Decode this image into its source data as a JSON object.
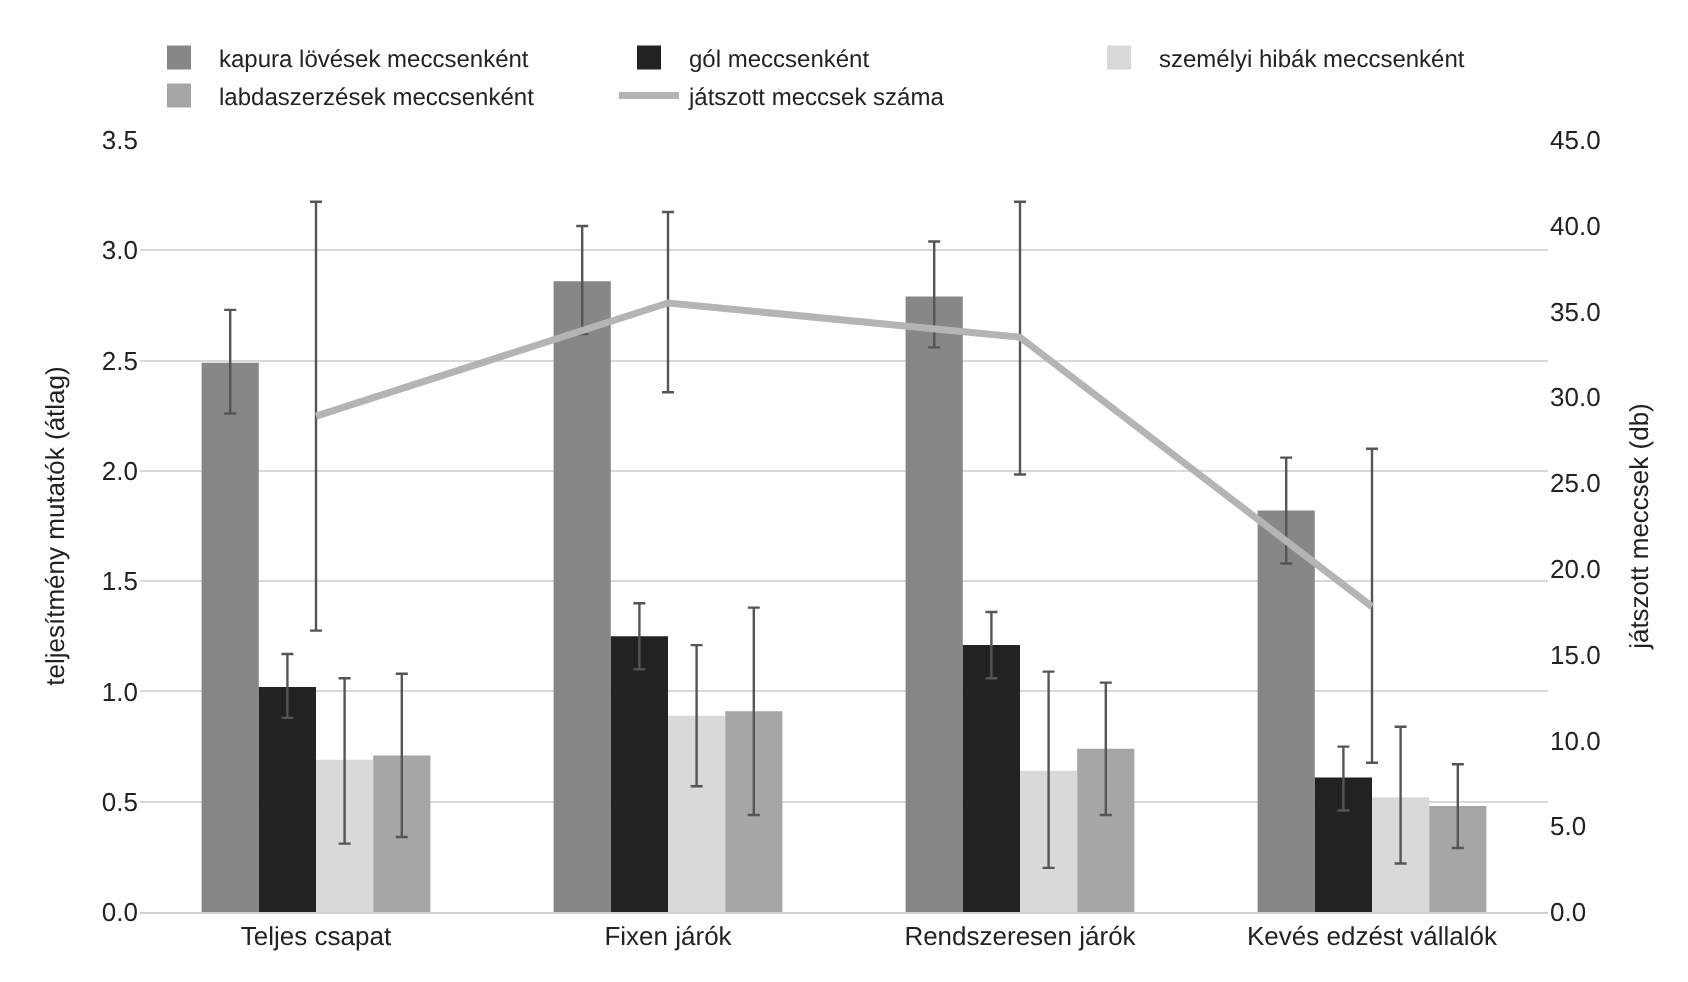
{
  "chart_data": {
    "type": "bar",
    "ylabel": "teljesítmény mutatók (átlag)",
    "y2label": "játszott meccsek (db)",
    "categories": [
      "Teljes csapat",
      "Fixen járók",
      "Rendszeresen járók",
      "Kevés edzést vállalók"
    ],
    "series": [
      {
        "name": "kapura lövések meccsenként",
        "color": "#878787",
        "values": [
          2.49,
          2.86,
          2.79,
          1.82
        ],
        "errors": [
          [
            2.26,
            2.73
          ],
          [
            2.62,
            3.11
          ],
          [
            2.56,
            3.04
          ],
          [
            1.58,
            2.06
          ]
        ]
      },
      {
        "name": "gól meccsenként",
        "color": "#222222",
        "values": [
          1.02,
          1.25,
          1.21,
          0.61
        ],
        "errors": [
          [
            0.88,
            1.17
          ],
          [
            1.1,
            1.4
          ],
          [
            1.06,
            1.36
          ],
          [
            0.46,
            0.75
          ]
        ]
      },
      {
        "name": "személyi hibák meccsenként",
        "color": "#d9d9d9",
        "values": [
          0.69,
          0.89,
          0.64,
          0.52
        ],
        "errors": [
          [
            0.31,
            1.06
          ],
          [
            0.57,
            1.21
          ],
          [
            0.2,
            1.09
          ],
          [
            0.22,
            0.84
          ]
        ]
      },
      {
        "name": "labdaszerzések meccsenként",
        "color": "#a6a6a6",
        "values": [
          0.71,
          0.91,
          0.74,
          0.48
        ],
        "errors": [
          [
            0.34,
            1.08
          ],
          [
            0.44,
            1.38
          ],
          [
            0.44,
            1.04
          ],
          [
            0.29,
            0.67
          ]
        ]
      },
      {
        "name": "játszott meccsek száma",
        "type": "line",
        "axis": "y2",
        "color": "#b4b4b4",
        "marker": "none",
        "line_style": "solid",
        "values": [
          28.9,
          35.5,
          33.5,
          17.8
        ],
        "errors": [
          [
            16.4,
            41.4
          ],
          [
            30.3,
            40.8
          ],
          [
            25.5,
            41.4
          ],
          [
            8.7,
            27.0
          ]
        ]
      }
    ],
    "ylim": [
      0,
      3.5
    ],
    "yticks": [
      {
        "value": 0,
        "label": "0.0"
      },
      {
        "value": 0.5,
        "label": "0.5"
      },
      {
        "value": 1,
        "label": "1.0"
      },
      {
        "value": 1.5,
        "label": "1.5"
      },
      {
        "value": 2,
        "label": "2.0"
      },
      {
        "value": 2.5,
        "label": "2.5"
      },
      {
        "value": 3,
        "label": "3.0"
      },
      {
        "value": 3.5,
        "label": "3.5"
      }
    ],
    "y2lim": [
      0,
      45
    ],
    "y2ticks": [
      {
        "value": 0,
        "label": "0.0"
      },
      {
        "value": 5,
        "label": "5.0"
      },
      {
        "value": 10,
        "label": "10.0"
      },
      {
        "value": 15,
        "label": "15.0"
      },
      {
        "value": 20,
        "label": "20.0"
      },
      {
        "value": 25,
        "label": "25.0"
      },
      {
        "value": 30,
        "label": "30.0"
      },
      {
        "value": 35,
        "label": "35.0"
      },
      {
        "value": 40,
        "label": "40.0"
      },
      {
        "value": 45,
        "label": "45.0"
      }
    ],
    "grid": "y",
    "legend": "top"
  }
}
